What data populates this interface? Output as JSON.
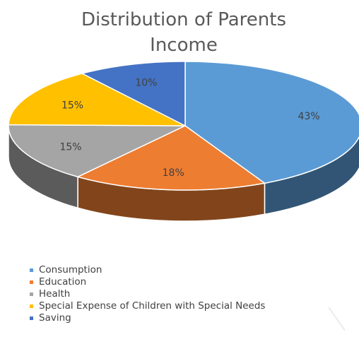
{
  "chart_data": {
    "type": "pie",
    "title": "Distribution of Parents Income",
    "title_lines": [
      "Distribution of Parents",
      "Income"
    ],
    "style": "3D pie",
    "legend_position": "bottom",
    "slices": [
      {
        "label": "Consumption",
        "value": 43,
        "display": "43%",
        "color": "#5b9bd5"
      },
      {
        "label": "Education",
        "value": 18,
        "display": "18%",
        "color": "#ed7d31"
      },
      {
        "label": "Health",
        "value": 15,
        "display": "15%",
        "color": "#a5a5a5"
      },
      {
        "label": "Special Expense of Children with Special Needs",
        "value": 15,
        "display": "15%",
        "color": "#ffc000"
      },
      {
        "label": "Saving",
        "value": 10,
        "display": "10%",
        "color": "#4472c4"
      }
    ]
  }
}
